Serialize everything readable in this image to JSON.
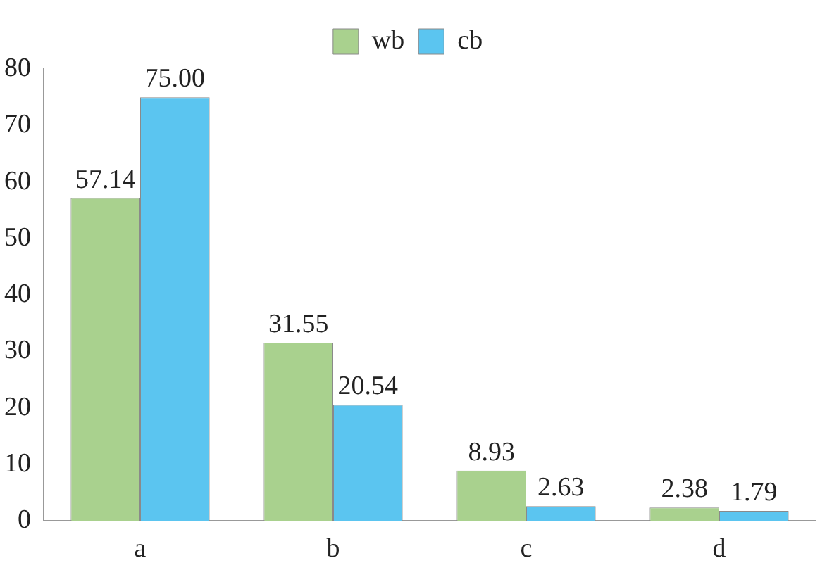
{
  "chart_data": {
    "type": "bar",
    "categories": [
      "a",
      "b",
      "c",
      "d"
    ],
    "series": [
      {
        "name": "wb",
        "color": "#a9d18e",
        "values": [
          57.14,
          31.55,
          8.93,
          2.38
        ]
      },
      {
        "name": "cb",
        "color": "#5bc5f0",
        "values": [
          75.0,
          20.54,
          2.63,
          1.79
        ]
      }
    ],
    "value_labels": [
      [
        "57.14",
        "31.55",
        "8.93",
        "2.38"
      ],
      [
        "75.00",
        "20.54",
        "2.63",
        "1.79"
      ]
    ],
    "ylim": [
      0,
      80
    ],
    "yticks": [
      0,
      10,
      20,
      30,
      40,
      50,
      60,
      70,
      80
    ],
    "grid": false,
    "legend": "top"
  }
}
